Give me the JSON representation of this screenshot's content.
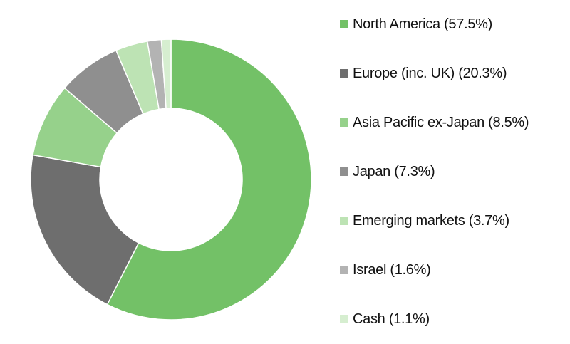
{
  "chart_data": {
    "type": "pie",
    "variant": "donut",
    "start": "top",
    "direction": "clockwise",
    "legend_position": "right",
    "slices": [
      {
        "label": "North America (57.5%)",
        "value": 57.5,
        "color": "#73c167"
      },
      {
        "label": "Europe (inc. UK) (20.3%)",
        "value": 20.3,
        "color": "#6e6e6e"
      },
      {
        "label": "Asia Pacific ex-Japan (8.5%)",
        "value": 8.5,
        "color": "#96d18b"
      },
      {
        "label": "Japan (7.3%)",
        "value": 7.3,
        "color": "#8f8f8f"
      },
      {
        "label": "Emerging markets (3.7%)",
        "value": 3.7,
        "color": "#bde3b4"
      },
      {
        "label": "Israel (1.6%)",
        "value": 1.6,
        "color": "#b3b3b3"
      },
      {
        "label": "Cash (1.1%)",
        "value": 1.1,
        "color": "#d6eed0"
      }
    ]
  }
}
